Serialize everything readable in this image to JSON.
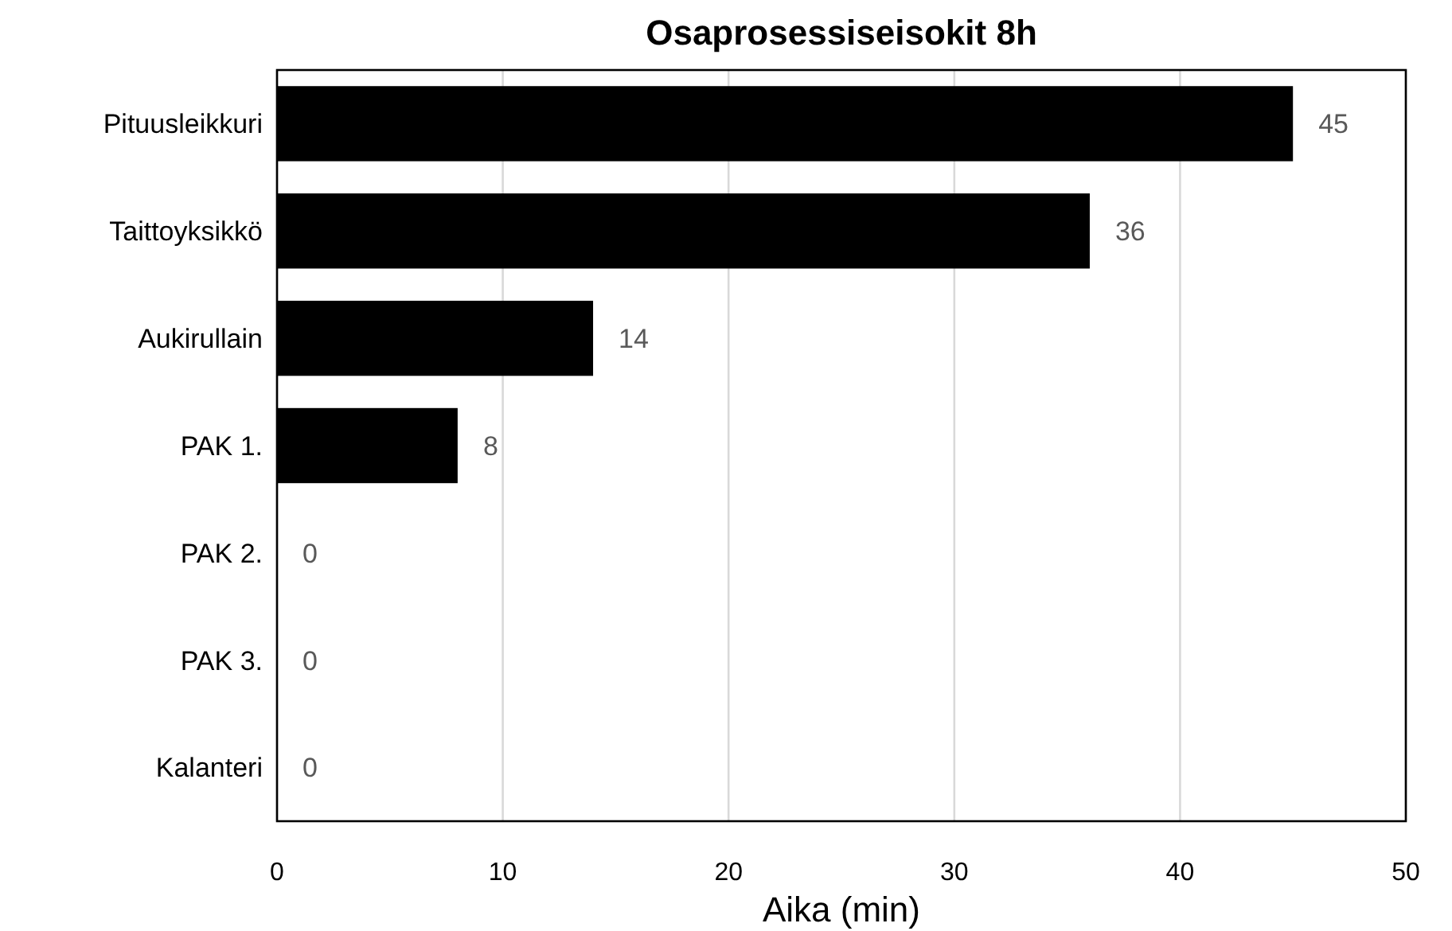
{
  "chart_data": {
    "type": "bar",
    "orientation": "horizontal",
    "title": "Osaprosessiseisokit 8h",
    "xlabel": "Aika (min)",
    "categories": [
      "Pituusleikkuri",
      "Taittoyksikkö",
      "Aukirullain",
      "PAK 1.",
      "PAK 2.",
      "PAK 3.",
      "Kalanteri"
    ],
    "values": [
      45,
      36,
      14,
      8,
      0,
      0,
      0
    ],
    "color": "#000000",
    "xlim": [
      0,
      50
    ],
    "xticks": [
      0,
      10,
      20,
      30,
      40,
      50
    ],
    "grid": "x",
    "data_labels": true
  }
}
